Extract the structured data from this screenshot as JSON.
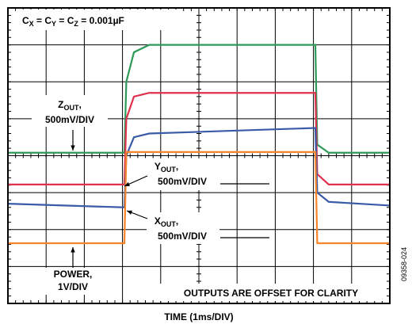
{
  "chart_data": {
    "type": "line",
    "title": [
      "C",
      "X",
      " = C",
      "Y",
      " = C",
      "Z",
      " = 0.001µF"
    ],
    "x_label": "TIME (1ms/DIV)",
    "annotation": "OUTPUTS ARE OFFSET FOR CLARITY",
    "figure_id": "09358-024",
    "xlim": [
      0,
      10
    ],
    "ylim": [
      0,
      8
    ],
    "xticks": [
      0,
      1,
      2,
      3,
      4,
      5,
      6,
      7,
      8,
      9,
      10
    ],
    "yticks": [
      0,
      1,
      2,
      3,
      4,
      5,
      6,
      7,
      8
    ],
    "grid": true,
    "x": [
      0,
      3.05,
      3.1,
      3.3,
      3.7,
      8.05,
      8.1,
      8.4,
      10
    ],
    "series": [
      {
        "label": [
          "Z",
          "OUT",
          ","
        ],
        "scale": "500mV/DIV",
        "color": "#2e9a5a",
        "values": [
          4.08,
          4.08,
          6.0,
          6.8,
          7.0,
          7.0,
          4.3,
          4.08,
          4.08
        ]
      },
      {
        "label": [
          "Y",
          "OUT",
          ","
        ],
        "scale": "500mV/DIV",
        "color": "#e0314f",
        "values": [
          3.22,
          3.22,
          5.0,
          5.6,
          5.7,
          5.7,
          3.5,
          3.22,
          3.22
        ]
      },
      {
        "label": [
          "X",
          "OUT",
          ","
        ],
        "scale": "500mV/DIV",
        "color": "#3a5ba8",
        "values": [
          2.7,
          2.6,
          4.0,
          4.5,
          4.6,
          4.75,
          3.0,
          2.75,
          2.65
        ]
      },
      {
        "label": [
          "POWER,"
        ],
        "scale": "1V/DIV",
        "color": "#f5842a",
        "values": [
          1.63,
          1.63,
          4.1,
          4.1,
          4.1,
          4.1,
          1.63,
          1.63,
          1.63
        ]
      }
    ]
  }
}
